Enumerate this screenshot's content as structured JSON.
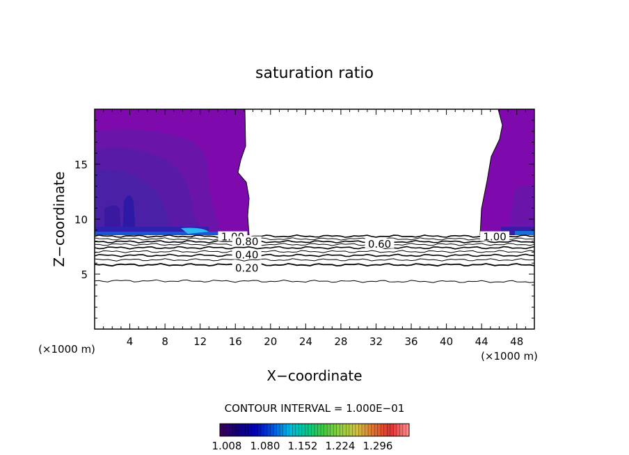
{
  "chart_data": {
    "type": "contour",
    "title": "saturation ratio",
    "xlabel": "X−coordinate",
    "ylabel": "Z−coordinate",
    "x_unit_left": "(×1000 m)",
    "x_unit_right": "(×1000 m)",
    "xlim": [
      0,
      50
    ],
    "ylim": [
      0,
      20
    ],
    "x_ticks": [
      4,
      8,
      12,
      16,
      20,
      24,
      28,
      32,
      36,
      40,
      44,
      48
    ],
    "y_ticks": [
      5,
      10,
      15
    ],
    "contour_labels": [
      {
        "text": "1.00",
        "x": 15.7,
        "y": 8.45
      },
      {
        "text": "0.80",
        "x": 17.3,
        "y": 8.0
      },
      {
        "text": "0.40",
        "x": 17.3,
        "y": 6.8
      },
      {
        "text": "0.20",
        "x": 17.3,
        "y": 5.6
      },
      {
        "text": "0.60",
        "x": 32.4,
        "y": 7.8
      },
      {
        "text": "1.00",
        "x": 45.5,
        "y": 8.45
      }
    ],
    "contour_interval_text": "CONTOUR INTERVAL = 1.000E−01",
    "colorbar": {
      "tick_labels": [
        "1.008",
        "1.080",
        "1.152",
        "1.224",
        "1.296"
      ],
      "colors": [
        "#3a0060",
        "#10007a",
        "#0000b8",
        "#0050e0",
        "#00b8e0",
        "#00c890",
        "#40c840",
        "#90d040",
        "#d0c040",
        "#e07030",
        "#e03030",
        "#ff8a8a"
      ]
    }
  }
}
